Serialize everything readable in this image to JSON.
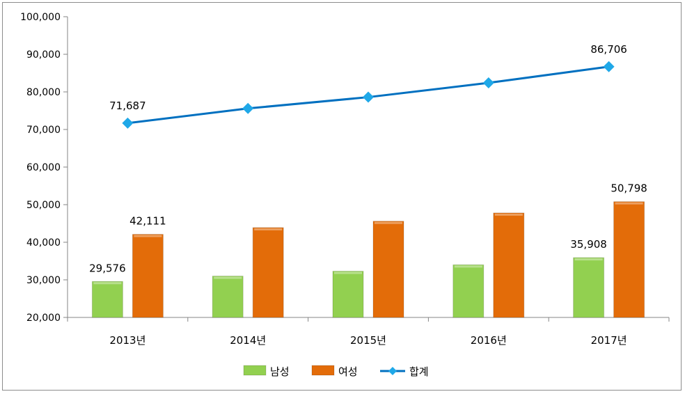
{
  "chart_data": {
    "type": "bar",
    "categories": [
      "2013년",
      "2014년",
      "2015년",
      "2016년",
      "2017년"
    ],
    "series": [
      {
        "name": "남성",
        "type": "bar",
        "color": "#92d050",
        "values": [
          29576,
          31000,
          32300,
          34000,
          35908
        ]
      },
      {
        "name": "여성",
        "type": "bar",
        "color": "#e36c09",
        "values": [
          42111,
          43900,
          45600,
          47800,
          50798
        ]
      },
      {
        "name": "합계",
        "type": "line",
        "color": "#0070c0",
        "marker_color": "#1fa8e8",
        "values": [
          71687,
          75600,
          78600,
          82400,
          86706
        ]
      }
    ],
    "data_labels": [
      {
        "series": 0,
        "index": 0,
        "text": "29,576"
      },
      {
        "series": 1,
        "index": 0,
        "text": "42,111"
      },
      {
        "series": 0,
        "index": 4,
        "text": "35,908"
      },
      {
        "series": 1,
        "index": 4,
        "text": "50,798"
      },
      {
        "series": 2,
        "index": 0,
        "text": "71,687"
      },
      {
        "series": 2,
        "index": 4,
        "text": "86,706"
      }
    ],
    "y_ticks": [
      "20,000",
      "30,000",
      "40,000",
      "50,000",
      "60,000",
      "70,000",
      "80,000",
      "90,000",
      "100,000"
    ],
    "ylim": [
      20000,
      100000
    ],
    "grid": false,
    "legend_position": "bottom"
  }
}
